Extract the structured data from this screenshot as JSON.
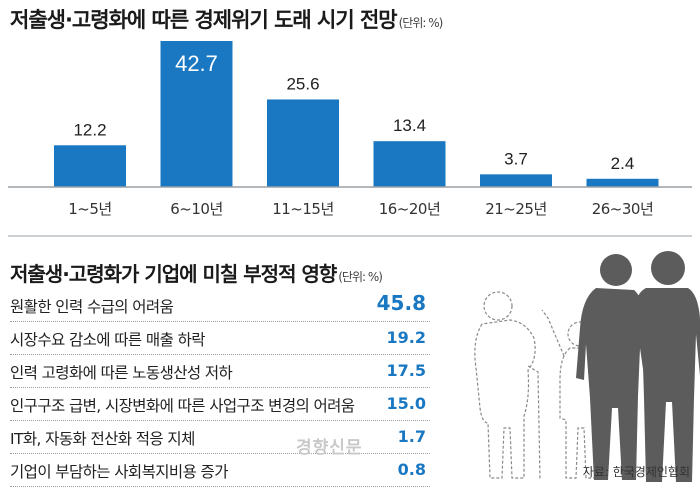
{
  "chart_data": [
    {
      "type": "bar",
      "title": "저출생·고령화에 따른 경제위기 도래 시기 전망",
      "unit": "(단위: %)",
      "categories": [
        "1~5년",
        "6~10년",
        "11~15년",
        "16~20년",
        "21~25년",
        "26~30년"
      ],
      "values": [
        12.2,
        42.7,
        25.6,
        13.4,
        3.7,
        2.4
      ],
      "value_labels": [
        "12.2",
        "42.7",
        "25.6",
        "13.4",
        "3.7",
        "2.4"
      ],
      "highlight_index": 1,
      "ylim": [
        0,
        42.7
      ],
      "bar_color": "#1a78c2",
      "highlight_label_color": "#ffffff"
    },
    {
      "type": "table",
      "title": "저출생·고령화가 기업에 미칠 부정적 영향",
      "unit": "(단위: %)",
      "rows": [
        {
          "label": "원활한 인력 수급의 어려움",
          "value": "45.8"
        },
        {
          "label": "시장수요 감소에 따른 매출 하락",
          "value": "19.2"
        },
        {
          "label": "인력 고령화에 따른 노동생산성 저하",
          "value": "17.5"
        },
        {
          "label": "인구구조 급변, 시장변화에 따른 사업구조 변경의 어려움",
          "value": "15.0"
        },
        {
          "label": "IT화, 자동화 전산화 적응 지체",
          "value": "1.7"
        },
        {
          "label": "기업이 부담하는 사회복지비용 증가",
          "value": "0.8"
        }
      ],
      "value_color": "#1a78c2"
    }
  ],
  "watermark": "경향신문",
  "source": "자료: 한국경제인협회"
}
